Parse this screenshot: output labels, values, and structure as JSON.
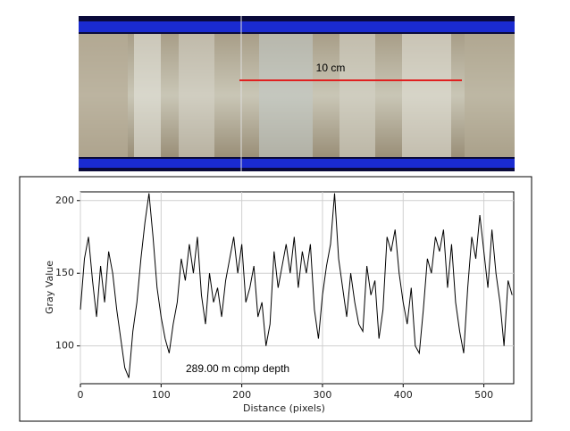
{
  "chart_data": {
    "type": "line",
    "annotations": [
      "10 cm",
      "289.00 m comp depth"
    ],
    "xlabel": "Distance (pixels)",
    "ylabel": "Gray Value",
    "x": [
      0,
      5,
      10,
      15,
      20,
      25,
      30,
      35,
      40,
      45,
      50,
      55,
      60,
      65,
      70,
      75,
      80,
      85,
      90,
      95,
      100,
      105,
      110,
      115,
      120,
      125,
      130,
      135,
      140,
      145,
      150,
      155,
      160,
      165,
      170,
      175,
      180,
      185,
      190,
      195,
      200,
      205,
      210,
      215,
      220,
      225,
      230,
      235,
      240,
      245,
      250,
      255,
      260,
      265,
      270,
      275,
      280,
      285,
      290,
      295,
      300,
      305,
      310,
      315,
      320,
      325,
      330,
      335,
      340,
      345,
      350,
      355,
      360,
      365,
      370,
      375,
      380,
      385,
      390,
      395,
      400,
      405,
      410,
      415,
      420,
      425,
      430,
      435,
      440,
      445,
      450,
      455,
      460,
      465,
      470,
      475,
      480,
      485,
      490,
      495,
      500,
      505,
      510,
      515,
      520,
      525,
      530,
      535
    ],
    "series": [
      {
        "name": "Gray Value",
        "color": "#000000",
        "values": [
          125,
          160,
          175,
          145,
          120,
          155,
          130,
          165,
          150,
          125,
          105,
          85,
          78,
          110,
          130,
          160,
          185,
          205,
          175,
          140,
          120,
          105,
          95,
          115,
          130,
          160,
          145,
          170,
          150,
          175,
          135,
          115,
          150,
          130,
          140,
          120,
          145,
          160,
          175,
          150,
          170,
          130,
          140,
          155,
          120,
          130,
          100,
          115,
          165,
          140,
          155,
          170,
          150,
          175,
          140,
          165,
          150,
          170,
          125,
          105,
          135,
          155,
          170,
          205,
          160,
          140,
          120,
          150,
          130,
          115,
          110,
          155,
          135,
          145,
          105,
          125,
          175,
          165,
          180,
          150,
          130,
          115,
          140,
          100,
          95,
          125,
          160,
          150,
          175,
          165,
          180,
          140,
          170,
          130,
          110,
          95,
          140,
          175,
          160,
          190,
          165,
          140,
          180,
          150,
          130,
          100,
          145,
          135
        ]
      }
    ],
    "xlim": [
      0,
      537
    ],
    "ylim": [
      74,
      206
    ],
    "xticks": [
      0,
      100,
      200,
      300,
      400,
      500
    ],
    "yticks": [
      100,
      150,
      200
    ],
    "grid": true
  }
}
